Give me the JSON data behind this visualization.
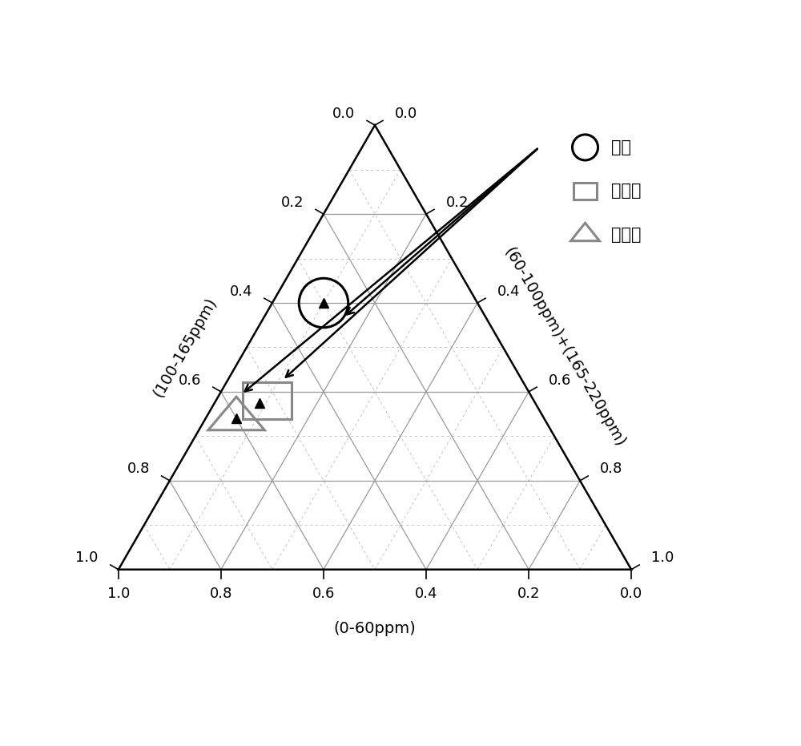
{
  "axis_labels": {
    "bottom": "(0-60ppm)",
    "left": "(100-165ppm)",
    "right": "(60-100ppm)+(165-220ppm)"
  },
  "legend_labels": [
    "燃煊",
    "生物质",
    "机动车"
  ],
  "tick_values": [
    0.0,
    0.2,
    0.4,
    0.6,
    0.8,
    1.0
  ],
  "grid_color_solid": "#999999",
  "grid_color_dashed": "#bbbbbb",
  "coal_abc": [
    0.3,
    0.6,
    0.1
  ],
  "biomass_abc": [
    0.52,
    0.38,
    0.1
  ],
  "vehicle_abc": [
    0.6,
    0.34,
    0.06
  ],
  "figsize": [
    10.0,
    9.31
  ],
  "dpi": 100
}
